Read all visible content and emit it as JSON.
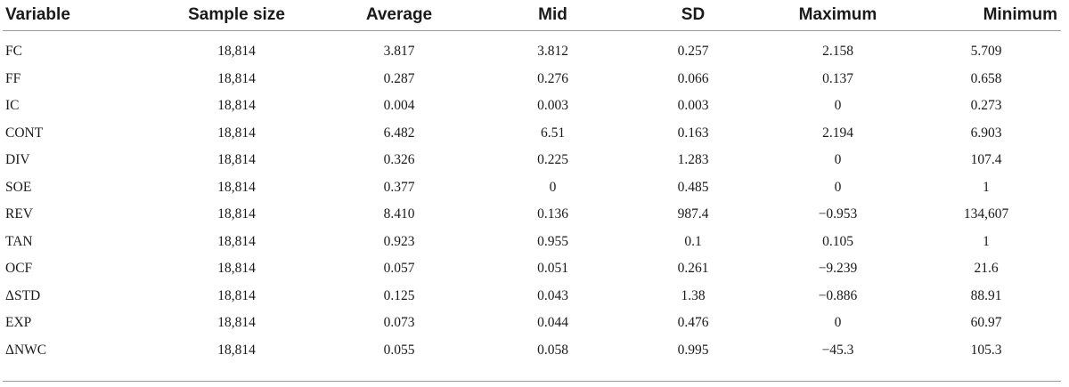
{
  "table": {
    "headers": [
      "Variable",
      "Sample size",
      "Average",
      "Mid",
      "SD",
      "Maximum",
      "Minimum"
    ],
    "rows": [
      [
        "FC",
        "18,814",
        "3.817",
        "3.812",
        "0.257",
        "2.158",
        "5.709"
      ],
      [
        "FF",
        "18,814",
        "0.287",
        "0.276",
        "0.066",
        "0.137",
        "0.658"
      ],
      [
        "IC",
        "18,814",
        "0.004",
        "0.003",
        "0.003",
        "0",
        "0.273"
      ],
      [
        "CONT",
        "18,814",
        "6.482",
        "6.51",
        "0.163",
        "2.194",
        "6.903"
      ],
      [
        "DIV",
        "18,814",
        "0.326",
        "0.225",
        "1.283",
        "0",
        "107.4"
      ],
      [
        "SOE",
        "18,814",
        "0.377",
        "0",
        "0.485",
        "0",
        "1"
      ],
      [
        "REV",
        "18,814",
        "8.410",
        "0.136",
        "987.4",
        "−0.953",
        "134,607"
      ],
      [
        "TAN",
        "18,814",
        "0.923",
        "0.955",
        "0.1",
        "0.105",
        "1"
      ],
      [
        "OCF",
        "18,814",
        "0.057",
        "0.051",
        "0.261",
        "−9.239",
        "21.6"
      ],
      [
        "ΔSTD",
        "18,814",
        "0.125",
        "0.043",
        "1.38",
        "−0.886",
        "88.91"
      ],
      [
        "EXP",
        "18,814",
        "0.073",
        "0.044",
        "0.476",
        "0",
        "60.97"
      ],
      [
        "ΔNWC",
        "18,814",
        "0.055",
        "0.058",
        "0.995",
        "−45.3",
        "105.3"
      ]
    ]
  }
}
